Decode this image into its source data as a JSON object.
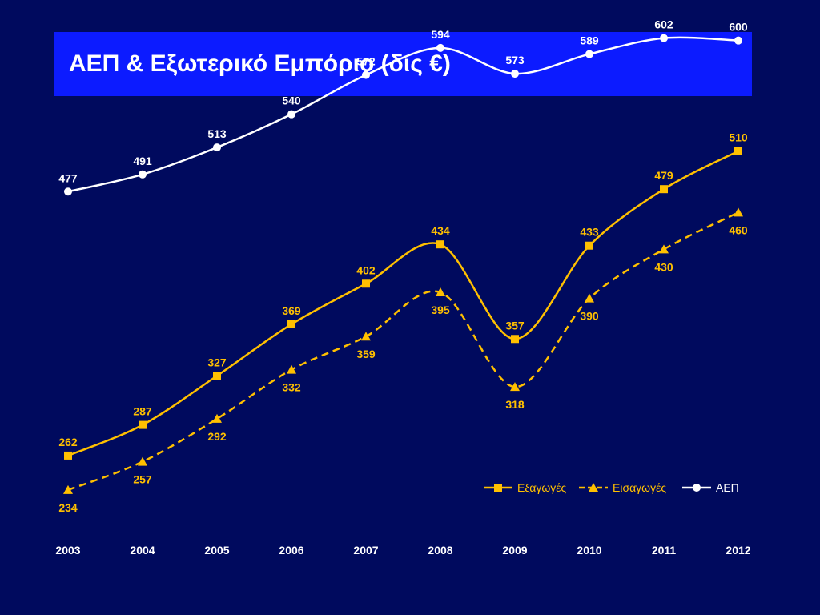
{
  "slide": {
    "title": "ΑΕΠ & Εξωτερικό Εμπόριο (δις €)"
  },
  "colors": {
    "background": "#000a5e",
    "title_bar": "#0c1bff",
    "exports": "#ffc000",
    "imports": "#ffc000",
    "gdp": "#ffffff"
  },
  "chart_data": {
    "type": "line",
    "title": "ΑΕΠ & Εξωτερικό Εμπόριο (δις €)",
    "x": [
      "2003",
      "2004",
      "2005",
      "2006",
      "2007",
      "2008",
      "2009",
      "2010",
      "2011",
      "2012"
    ],
    "ylim": [
      200,
      620
    ],
    "grid": false,
    "legend_position": "bottom-right",
    "series": [
      {
        "name": "Εξαγωγές",
        "key": "exports",
        "marker": "square",
        "dash": "solid",
        "values": [
          262,
          287,
          327,
          369,
          402,
          434,
          357,
          433,
          479,
          510
        ],
        "label_position": "above"
      },
      {
        "name": "Εισαγωγές",
        "key": "imports",
        "marker": "triangle",
        "dash": "dashed",
        "values": [
          234,
          257,
          292,
          332,
          359,
          395,
          318,
          390,
          430,
          460
        ],
        "label_position": "below"
      },
      {
        "name": "ΑΕΠ",
        "key": "gdp",
        "marker": "circle",
        "dash": "solid",
        "values": [
          477,
          491,
          513,
          540,
          572,
          594,
          573,
          589,
          602,
          600
        ],
        "label_position": "above"
      }
    ]
  }
}
